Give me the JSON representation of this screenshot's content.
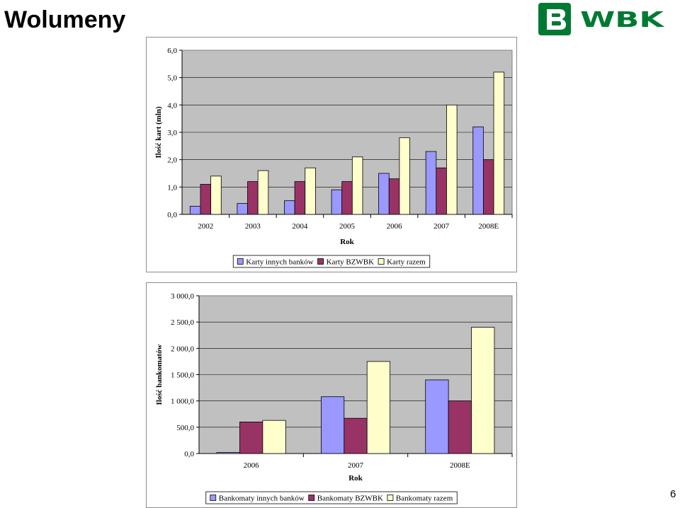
{
  "slide": {
    "title": "Wolumeny",
    "page_number": "6"
  },
  "logo": {
    "text": "WBK",
    "colors": {
      "green": "#007a33",
      "white": "#ffffff"
    }
  },
  "colors": {
    "series1": "#9999ff",
    "series2": "#993366",
    "series3": "#ffffcc",
    "plot_bg": "#c0c0c0",
    "grid": "#000000"
  },
  "chart_data": [
    {
      "type": "bar",
      "title": "",
      "xlabel": "Rok",
      "ylabel": "Ilość kart (mln)",
      "categories": [
        "2002",
        "2003",
        "2004",
        "2005",
        "2006",
        "2007",
        "2008E"
      ],
      "series": [
        {
          "name": "Karty innych banków",
          "values": [
            0.3,
            0.4,
            0.5,
            0.9,
            1.5,
            2.3,
            3.2
          ]
        },
        {
          "name": "Karty BZWBK",
          "values": [
            1.1,
            1.2,
            1.2,
            1.2,
            1.3,
            1.7,
            2.0
          ]
        },
        {
          "name": "Karty razem",
          "values": [
            1.4,
            1.6,
            1.7,
            2.1,
            2.8,
            4.0,
            5.2
          ]
        }
      ],
      "ylim": [
        0,
        6
      ],
      "yticks": [
        "0,0",
        "1,0",
        "2,0",
        "3,0",
        "4,0",
        "5,0",
        "6,0"
      ],
      "grid": true,
      "legend": "bottom"
    },
    {
      "type": "bar",
      "title": "",
      "xlabel": "Rok",
      "ylabel": "Ilość bankomatów",
      "categories": [
        "2006",
        "2007",
        "2008E"
      ],
      "series": [
        {
          "name": "Bankomaty innych banków",
          "values": [
            20,
            1080,
            1400
          ]
        },
        {
          "name": "Bankomaty BZWBK",
          "values": [
            600,
            670,
            1000
          ]
        },
        {
          "name": "Bankomaty razem",
          "values": [
            630,
            1750,
            2400
          ]
        }
      ],
      "ylim": [
        0,
        3000
      ],
      "yticks": [
        "0,0",
        "500,0",
        "1 000,0",
        "1 500,0",
        "2 000,0",
        "2 500,0",
        "3 000,0"
      ],
      "grid": true,
      "legend": "bottom"
    }
  ]
}
